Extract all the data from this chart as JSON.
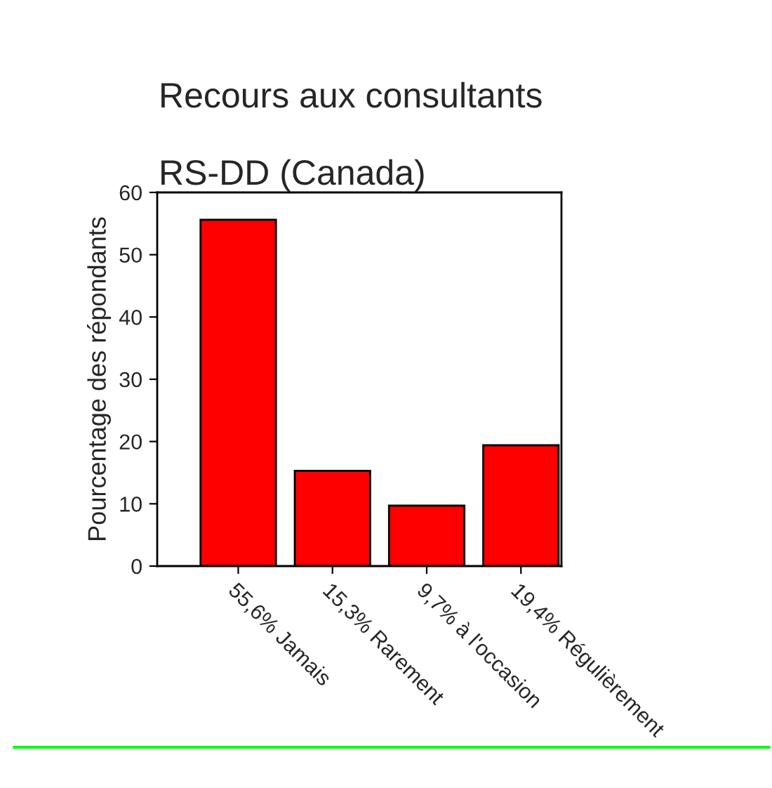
{
  "chart_data": {
    "type": "bar",
    "title": "Recours aux consultants",
    "subtitle": "RS-DD (Canada)",
    "ylabel": "Pourcentage des répondants",
    "categories": [
      "55,6% Jamais",
      "15,3% Rarement",
      "9,7% à l'occasion",
      "19,4% Régulièrement"
    ],
    "values": [
      55.6,
      15.3,
      9.7,
      19.4
    ],
    "color": "#ff0000",
    "ylim": [
      0,
      60
    ],
    "yticks": [
      0,
      10,
      20,
      30,
      40,
      50,
      60
    ],
    "grid": false,
    "legend": false
  }
}
